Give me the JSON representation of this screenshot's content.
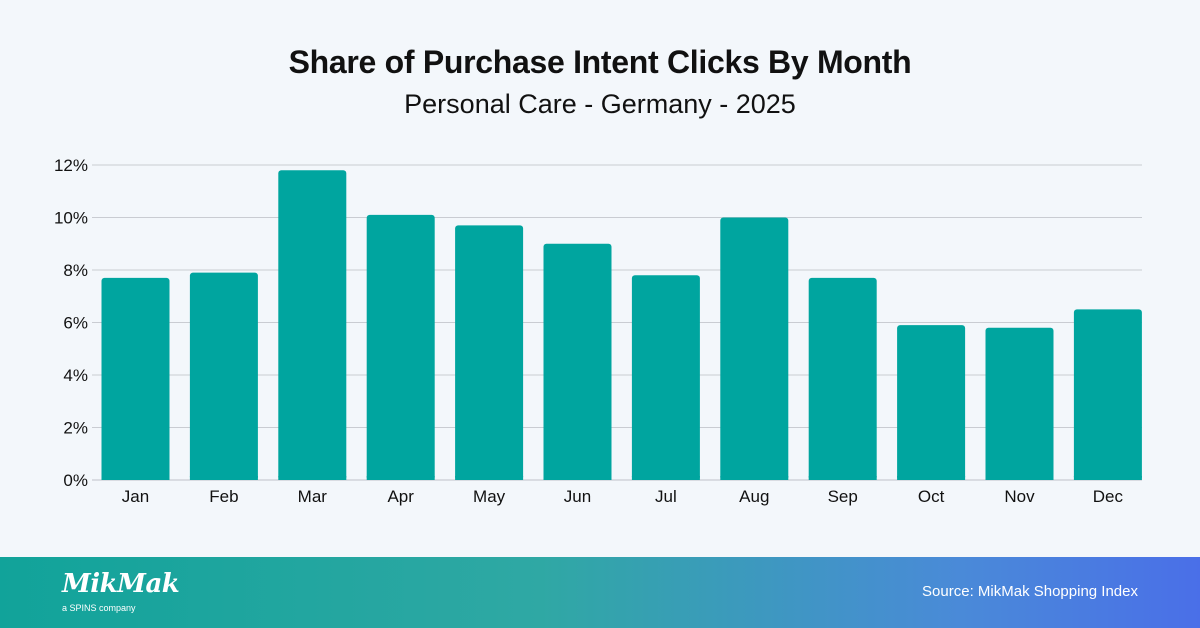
{
  "colors": {
    "bar": "#00a59f",
    "grid": "#c9ccd2",
    "axis_text": "#111111"
  },
  "chart_data": {
    "type": "bar",
    "title": "Share of Purchase Intent Clicks By Month",
    "subtitle": "Personal Care - Germany - 2025",
    "categories": [
      "Jan",
      "Feb",
      "Mar",
      "Apr",
      "May",
      "Jun",
      "Jul",
      "Aug",
      "Sep",
      "Oct",
      "Nov",
      "Dec"
    ],
    "values": [
      7.7,
      7.9,
      11.8,
      10.1,
      9.7,
      9.0,
      7.8,
      10.0,
      7.7,
      5.9,
      5.8,
      6.5
    ],
    "ylim": [
      0,
      12
    ],
    "yticks": [
      0,
      2,
      4,
      6,
      8,
      10,
      12
    ],
    "ytick_labels": [
      "0%",
      "2%",
      "4%",
      "6%",
      "8%",
      "10%",
      "12%"
    ],
    "xlabel": "",
    "ylabel": "",
    "grid": true
  },
  "footer": {
    "logo": "MikMak",
    "logo_tagline": "a SPINS company",
    "source": "Source: MikMak Shopping Index"
  }
}
